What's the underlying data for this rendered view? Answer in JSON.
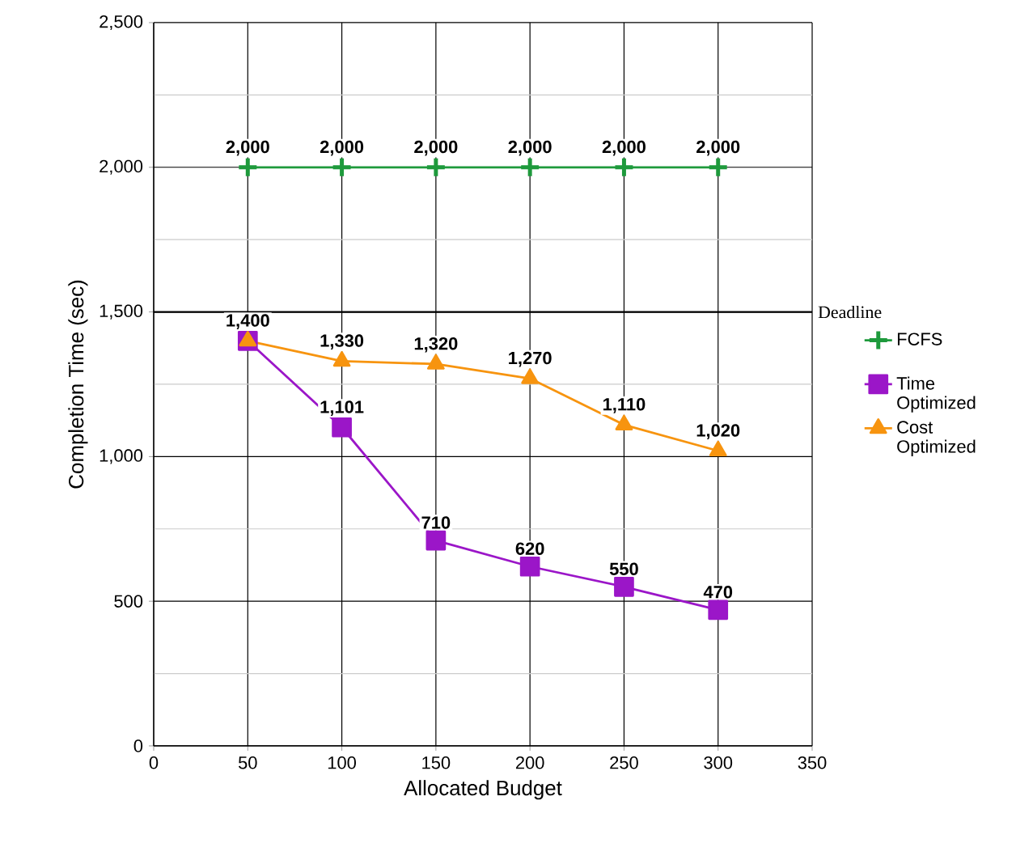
{
  "chart_data": {
    "type": "line",
    "xlabel": "Allocated Budget",
    "ylabel": "Completion Time (sec)",
    "x": [
      50,
      100,
      150,
      200,
      250,
      300
    ],
    "series": [
      {
        "name": "FCFS",
        "color": "#1e9a3c",
        "marker": "cross",
        "values": [
          2000,
          2000,
          2000,
          2000,
          2000,
          2000
        ],
        "value_labels": [
          "2,000",
          "2,000",
          "2,000",
          "2,000",
          "2,000",
          "2,000"
        ]
      },
      {
        "name": "Time Optimized",
        "color": "#9b16c8",
        "marker": "square",
        "values": [
          1400,
          1101,
          710,
          620,
          550,
          470
        ],
        "value_labels": [
          "1,400",
          "1,101",
          "710",
          "620",
          "550",
          "470"
        ]
      },
      {
        "name": "Cost Optimized",
        "color": "#f7940f",
        "marker": "triangle",
        "values": [
          1400,
          1330,
          1320,
          1270,
          1110,
          1020
        ],
        "value_labels": [
          null,
          "1,330",
          "1,320",
          "1,270",
          "1,110",
          "1,020"
        ]
      }
    ],
    "xlim": [
      0,
      350
    ],
    "xticks": [
      0,
      50,
      100,
      150,
      200,
      250,
      300,
      350
    ],
    "ylim": [
      0,
      2500
    ],
    "yticks": [
      0,
      {
        "value": 500,
        "label": "500"
      },
      {
        "value": 1000,
        "label": "1,000"
      },
      {
        "value": 1500,
        "label": "1,500"
      },
      {
        "value": 2000,
        "label": "2,000"
      },
      {
        "value": 2500,
        "label": "2,500"
      }
    ],
    "ref_lines": [
      {
        "axis": "y",
        "value": 1500,
        "label": "Deadline",
        "color": "#000000"
      }
    ],
    "grid": true,
    "legend": "right"
  }
}
